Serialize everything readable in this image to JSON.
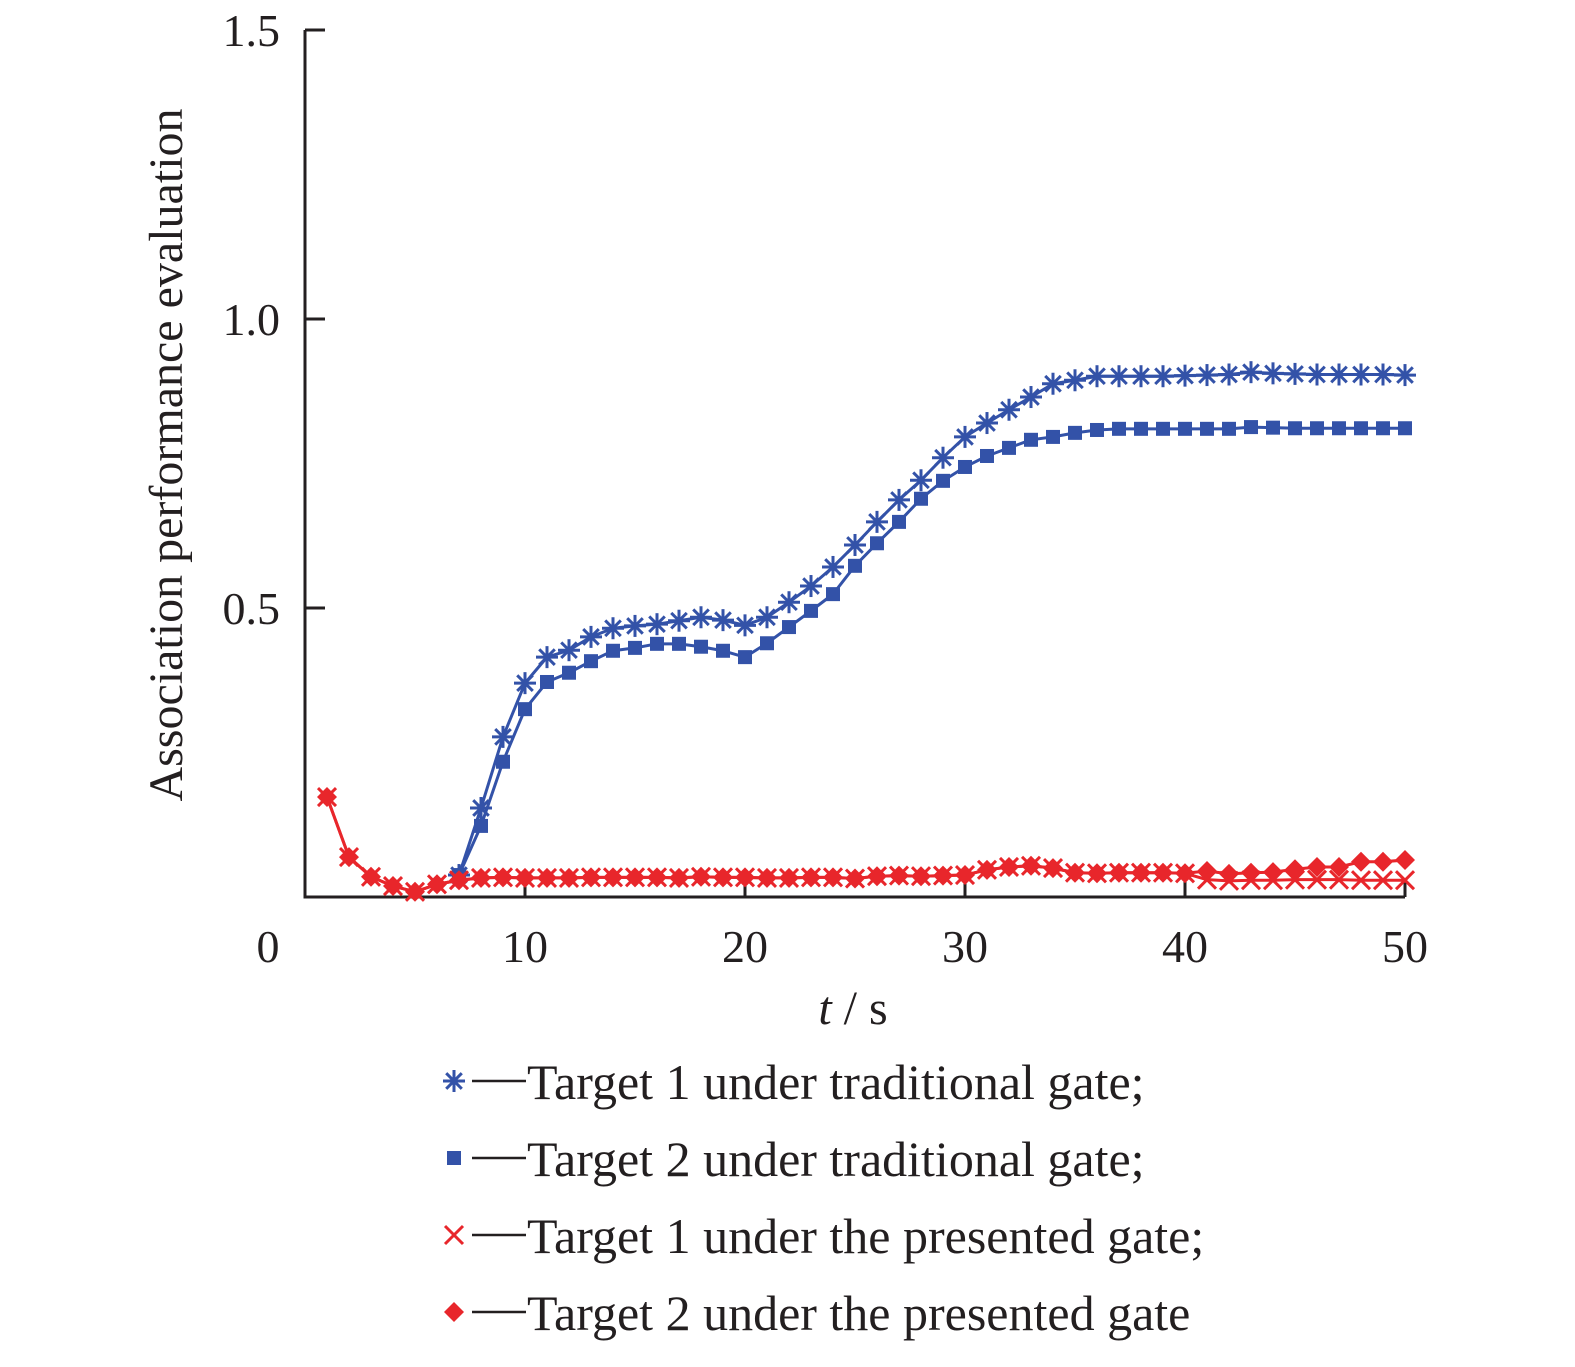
{
  "chart_data": {
    "type": "line",
    "title": "",
    "xlabel_italic": "t",
    "xlabel_unit": " / s",
    "ylabel": "Association performance evaluation",
    "xlim": [
      0,
      50
    ],
    "ylim": [
      0,
      1.5
    ],
    "xticks": [
      10,
      20,
      30,
      40,
      50
    ],
    "xtick_labels": [
      "10",
      "20",
      "30",
      "40",
      "50"
    ],
    "yticks": [
      0.5,
      1.0,
      1.5
    ],
    "ytick_labels": [
      "0.5",
      "1.0",
      "1.5"
    ],
    "origin_label": "0",
    "grid": false,
    "legend_placement": "bottom",
    "series": [
      {
        "name": "Target 1 under traditional gate;",
        "color": "#3352a8",
        "marker": "asterisk",
        "x": [
          7,
          8,
          9,
          10,
          11,
          12,
          13,
          14,
          15,
          16,
          17,
          18,
          19,
          20,
          21,
          22,
          23,
          24,
          25,
          26,
          27,
          28,
          29,
          30,
          31,
          32,
          33,
          34,
          35,
          36,
          37,
          38,
          39,
          40,
          41,
          42,
          43,
          44,
          45,
          46,
          47,
          48,
          49,
          50
        ],
        "y": [
          0.038,
          0.154,
          0.277,
          0.37,
          0.415,
          0.427,
          0.45,
          0.465,
          0.469,
          0.472,
          0.478,
          0.484,
          0.479,
          0.47,
          0.484,
          0.51,
          0.538,
          0.571,
          0.609,
          0.649,
          0.687,
          0.721,
          0.76,
          0.796,
          0.82,
          0.843,
          0.865,
          0.888,
          0.894,
          0.901,
          0.901,
          0.901,
          0.901,
          0.902,
          0.903,
          0.904,
          0.908,
          0.906,
          0.905,
          0.904,
          0.904,
          0.904,
          0.904,
          0.903
        ]
      },
      {
        "name": "Target 2 under traditional gate;",
        "color": "#3352a8",
        "marker": "square",
        "x": [
          7,
          8,
          9,
          10,
          11,
          12,
          13,
          14,
          15,
          16,
          17,
          18,
          19,
          20,
          21,
          22,
          23,
          24,
          25,
          26,
          27,
          28,
          29,
          30,
          31,
          32,
          33,
          34,
          35,
          36,
          37,
          38,
          39,
          40,
          41,
          42,
          43,
          44,
          45,
          46,
          47,
          48,
          49,
          50
        ],
        "y": [
          0.038,
          0.123,
          0.234,
          0.325,
          0.372,
          0.388,
          0.408,
          0.426,
          0.431,
          0.438,
          0.438,
          0.433,
          0.426,
          0.415,
          0.439,
          0.467,
          0.495,
          0.524,
          0.573,
          0.612,
          0.649,
          0.689,
          0.72,
          0.744,
          0.763,
          0.777,
          0.791,
          0.796,
          0.803,
          0.808,
          0.81,
          0.81,
          0.81,
          0.81,
          0.81,
          0.81,
          0.813,
          0.812,
          0.811,
          0.811,
          0.811,
          0.811,
          0.811,
          0.811
        ]
      },
      {
        "name": "Target 1 under the presented gate;",
        "color": "#e8262b",
        "marker": "x",
        "x": [
          1,
          2,
          3,
          4,
          5,
          6,
          7,
          8,
          9,
          10,
          11,
          12,
          13,
          14,
          15,
          16,
          17,
          18,
          19,
          20,
          21,
          22,
          23,
          24,
          25,
          26,
          27,
          28,
          29,
          30,
          31,
          32,
          33,
          34,
          35,
          36,
          37,
          38,
          39,
          40,
          41,
          42,
          43,
          44,
          45,
          46,
          47,
          48,
          49,
          50
        ],
        "y": [
          0.173,
          0.069,
          0.035,
          0.019,
          0.009,
          0.022,
          0.029,
          0.033,
          0.034,
          0.033,
          0.033,
          0.033,
          0.034,
          0.034,
          0.034,
          0.034,
          0.033,
          0.035,
          0.034,
          0.034,
          0.033,
          0.033,
          0.034,
          0.034,
          0.032,
          0.036,
          0.037,
          0.036,
          0.037,
          0.038,
          0.047,
          0.052,
          0.054,
          0.05,
          0.042,
          0.041,
          0.042,
          0.042,
          0.042,
          0.041,
          0.03,
          0.028,
          0.029,
          0.029,
          0.03,
          0.03,
          0.03,
          0.029,
          0.029,
          0.029
        ]
      },
      {
        "name": "Target 2 under the presented gate",
        "color": "#e8262b",
        "marker": "diamond",
        "x": [
          1,
          2,
          3,
          4,
          5,
          6,
          7,
          8,
          9,
          10,
          11,
          12,
          13,
          14,
          15,
          16,
          17,
          18,
          19,
          20,
          21,
          22,
          23,
          24,
          25,
          26,
          27,
          28,
          29,
          30,
          31,
          32,
          33,
          34,
          35,
          36,
          37,
          38,
          39,
          40,
          41,
          42,
          43,
          44,
          45,
          46,
          47,
          48,
          49,
          50
        ],
        "y": [
          0.173,
          0.069,
          0.035,
          0.019,
          0.009,
          0.022,
          0.029,
          0.033,
          0.034,
          0.033,
          0.033,
          0.033,
          0.034,
          0.034,
          0.034,
          0.034,
          0.033,
          0.035,
          0.034,
          0.034,
          0.033,
          0.033,
          0.034,
          0.034,
          0.032,
          0.036,
          0.037,
          0.036,
          0.037,
          0.038,
          0.047,
          0.052,
          0.054,
          0.05,
          0.042,
          0.041,
          0.042,
          0.042,
          0.042,
          0.041,
          0.045,
          0.04,
          0.042,
          0.043,
          0.048,
          0.052,
          0.052,
          0.061,
          0.061,
          0.064
        ]
      }
    ]
  }
}
